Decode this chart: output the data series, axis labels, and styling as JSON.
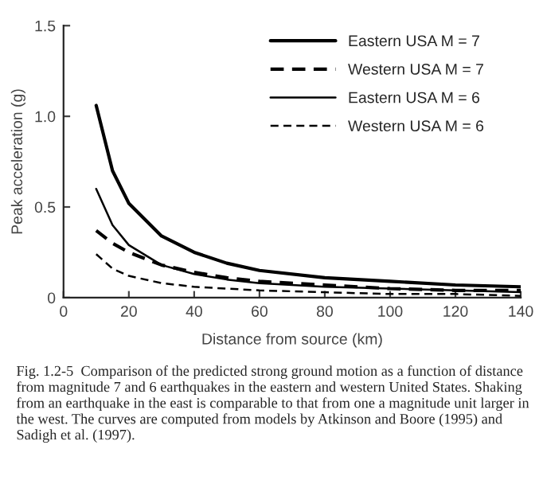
{
  "chart_data": {
    "type": "line",
    "xlabel": "Distance from source (km)",
    "ylabel": "Peak acceleration (g)",
    "x": [
      10,
      15,
      20,
      30,
      40,
      50,
      60,
      80,
      100,
      120,
      140
    ],
    "series": [
      {
        "name": "Eastern USA M = 7",
        "color": "#000000",
        "line_style": "solid",
        "values": [
          1.06,
          0.7,
          0.52,
          0.34,
          0.25,
          0.19,
          0.15,
          0.11,
          0.09,
          0.07,
          0.06
        ]
      },
      {
        "name": "Western USA M = 7",
        "color": "#000000",
        "line_style": "dashed",
        "values": [
          0.37,
          0.3,
          0.25,
          0.18,
          0.14,
          0.11,
          0.09,
          0.07,
          0.05,
          0.04,
          0.04
        ]
      },
      {
        "name": "Eastern USA M = 6",
        "color": "#000000",
        "line_style": "solid",
        "values": [
          0.6,
          0.4,
          0.29,
          0.18,
          0.13,
          0.1,
          0.08,
          0.06,
          0.05,
          0.04,
          0.03
        ]
      },
      {
        "name": "Western USA M = 6",
        "color": "#000000",
        "line_style": "dashed",
        "values": [
          0.24,
          0.16,
          0.12,
          0.08,
          0.06,
          0.05,
          0.04,
          0.03,
          0.02,
          0.02,
          0.01
        ]
      }
    ],
    "xlim": [
      0,
      140
    ],
    "xticks": [
      0,
      20,
      40,
      60,
      80,
      100,
      120,
      140
    ],
    "ylim": [
      0,
      1.5
    ],
    "yticks": [
      0,
      0.5,
      {
        "value": 1.0,
        "label": "1.0"
      },
      1.5
    ],
    "grid": false,
    "legend": "top right",
    "annotations": [
      "Fig. 1.2-5  Comparison of the predicted strong ground motion as a function of distance from magnitude 7 and 6 earthquakes in the eastern and western United States. Shaking from an earthquake in the east is comparable to that from one a magnitude unit larger in the west. The curves are computed from models by Atkinson and Boore (1995) and Sadigh et al. (1997)."
    ]
  }
}
